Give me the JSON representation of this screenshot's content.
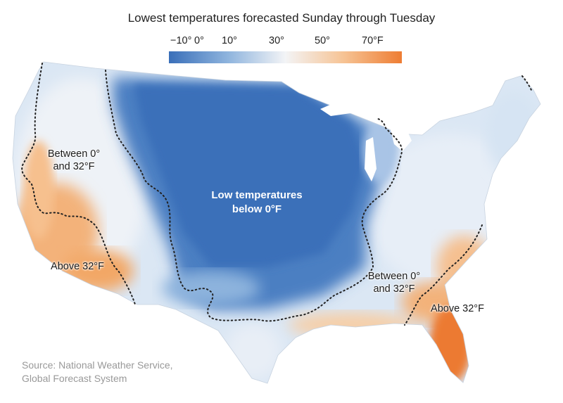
{
  "title": "Lowest temperatures forecasted Sunday through Tuesday",
  "scale": {
    "ticks": [
      "−10°",
      "0°",
      "10°",
      "30°",
      "50°",
      "70°F"
    ],
    "colors": {
      "cold": "#3a6fb9",
      "mid_cold": "#8db3dd",
      "neutral": "#f3f4f6",
      "mid_warm": "#f6c394",
      "warm": "#ee7d33"
    }
  },
  "annotations": {
    "west_between": [
      "Between 0°",
      "and 32°F"
    ],
    "center_below": [
      "Low temperatures",
      "below 0°F"
    ],
    "west_above": "Above 32°F",
    "east_between": [
      "Between 0°",
      "and 32°F"
    ],
    "east_above": "Above 32°F"
  },
  "source": [
    "Source: National Weather Service,",
    "Global Forecast System"
  ]
}
